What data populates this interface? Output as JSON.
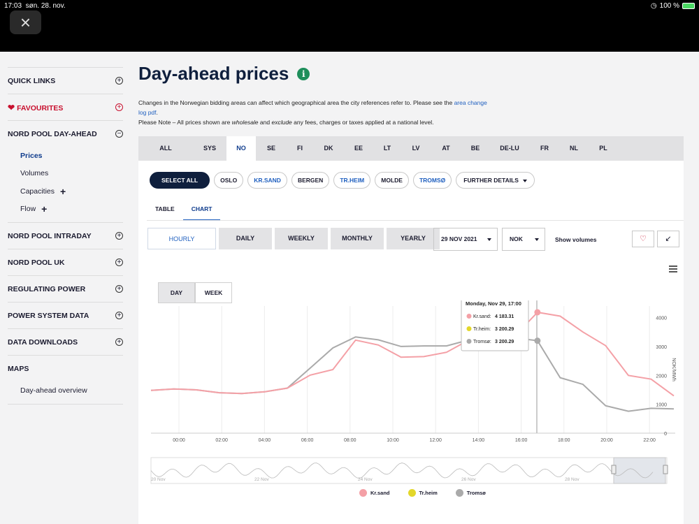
{
  "status": {
    "time": "17:03",
    "date": "søn. 28. nov.",
    "battery": "100 %",
    "wifi_icon": "wifi-icon"
  },
  "sidebar": {
    "quick_links": "QUICK LINKS",
    "favourites": "FAVOURITES",
    "day_ahead": "NORD POOL DAY-AHEAD",
    "sub": [
      "Prices",
      "Volumes",
      "Capacities",
      "Flow"
    ],
    "intraday": "NORD POOL INTRADAY",
    "uk": "NORD POOL UK",
    "regulating": "REGULATING POWER",
    "power_system": "POWER SYSTEM DATA",
    "downloads": "DATA DOWNLOADS",
    "maps": "MAPS",
    "maps_sub": "Day-ahead overview"
  },
  "page": {
    "title": "Day-ahead prices",
    "desc1": "Changes in the Norwegian bidding areas can affect which geographical area the city references refer to. Please see the",
    "desc_link": "area change log pdf",
    "desc2": "Please Note – All prices shown are",
    "desc_w": "wholesale",
    "desc3": "and",
    "desc_e": "exclude",
    "desc4": "any fees, charges or taxes applied at a national level."
  },
  "countries": [
    "ALL",
    "SYS",
    "NO",
    "SE",
    "FI",
    "DK",
    "EE",
    "LT",
    "LV",
    "AT",
    "BE",
    "DE-LU",
    "FR",
    "NL",
    "PL"
  ],
  "cities": [
    "SELECT ALL",
    "OSLO",
    "KR.SAND",
    "BERGEN",
    "TR.HEIM",
    "MOLDE",
    "TROMSØ",
    "FURTHER DETAILS"
  ],
  "view_tabs": [
    "TABLE",
    "CHART"
  ],
  "periods": [
    "HOURLY",
    "DAILY",
    "WEEKLY",
    "MONTHLY",
    "YEARLY"
  ],
  "date": "29 NOV 2021",
  "currency": "NOK",
  "show_volumes": "Show volumes",
  "day_week": [
    "DAY",
    "WEEK"
  ],
  "chart_data": {
    "type": "line",
    "x": [
      "00:00",
      "01:00",
      "02:00",
      "03:00",
      "04:00",
      "05:00",
      "06:00",
      "07:00",
      "08:00",
      "09:00",
      "10:00",
      "11:00",
      "12:00",
      "13:00",
      "14:00",
      "15:00",
      "16:00",
      "17:00",
      "18:00",
      "19:00",
      "20:00",
      "21:00",
      "22:00",
      "23:00"
    ],
    "x_ticks": [
      "00:00",
      "02:00",
      "04:00",
      "06:00",
      "08:00",
      "10:00",
      "12:00",
      "14:00",
      "16:00",
      "18:00",
      "20:00",
      "22:00"
    ],
    "ylabel": "NOK/MWh",
    "ylim": [
      0,
      4400
    ],
    "y_ticks": [
      "0",
      "1000",
      "2000",
      "3000",
      "4000"
    ],
    "series": [
      {
        "name": "Kr.sand",
        "color": "#f4a0a6",
        "values": [
          1480,
          1530,
          1500,
          1400,
          1370,
          1430,
          1560,
          2010,
          2200,
          3220,
          3050,
          2630,
          2650,
          2800,
          3230,
          3250,
          3350,
          4183,
          4050,
          3500,
          3030,
          2000,
          1870,
          1290
        ]
      },
      {
        "name": "Tr.heim",
        "color": "#e3d72a",
        "values": [
          1480,
          1530,
          1500,
          1400,
          1370,
          1430,
          1560,
          2250,
          2950,
          3330,
          3230,
          3000,
          3020,
          3020,
          3230,
          3350,
          3300,
          3200,
          1920,
          1690,
          950,
          760,
          860,
          840
        ]
      },
      {
        "name": "Tromsø",
        "color": "#aaaaaa",
        "values": [
          1480,
          1530,
          1500,
          1400,
          1370,
          1430,
          1560,
          2250,
          2950,
          3330,
          3230,
          3000,
          3020,
          3020,
          3230,
          3350,
          3300,
          3200,
          1920,
          1690,
          950,
          760,
          860,
          840
        ]
      }
    ],
    "tooltip": {
      "title": "Monday, Nov 29, 17:00",
      "rows": [
        {
          "label": "Kr.sand:",
          "value": "4 183.31",
          "color": "#f4a0a6"
        },
        {
          "label": "Tr.heim:",
          "value": "3 200.29",
          "color": "#e3d72a"
        },
        {
          "label": "Tromsø:",
          "value": "3 200.29",
          "color": "#aaaaaa"
        }
      ]
    },
    "navigator_labels": [
      "20 Nov",
      "22 Nov",
      "24 Nov",
      "26 Nov",
      "28 Nov"
    ],
    "legend": [
      "Kr.sand",
      "Tr.heim",
      "Tromsø"
    ]
  }
}
